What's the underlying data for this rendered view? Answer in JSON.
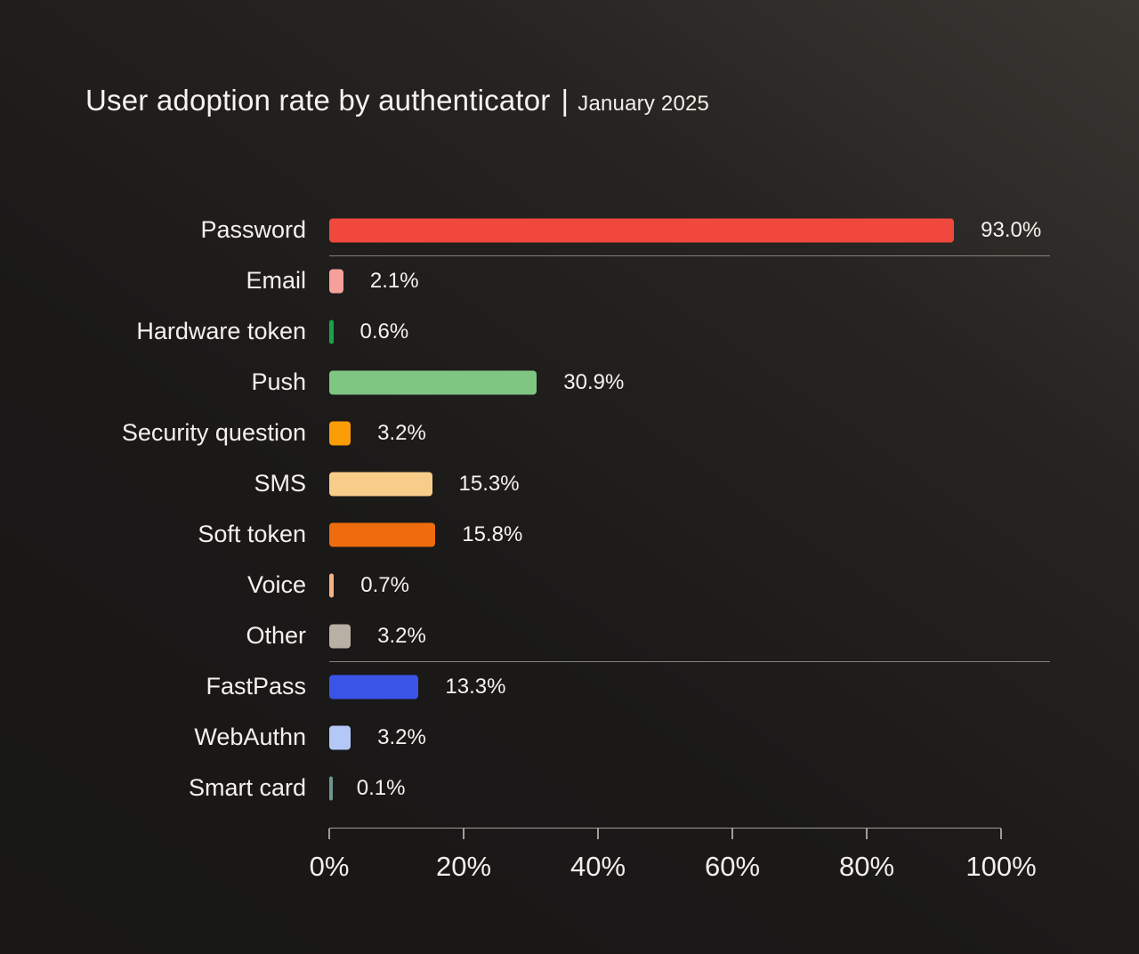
{
  "title": {
    "main": "User adoption rate by authenticator",
    "separator": "|",
    "subtitle": "January 2025"
  },
  "theme": {
    "background_top_right": "#3a3632",
    "background_bottom_left": "#181716",
    "text_color": "#f6f3ee",
    "separator_color": "#85817a",
    "axis_color": "#a29e97"
  },
  "chart_data": {
    "type": "bar",
    "orientation": "horizontal",
    "title": "User adoption rate by authenticator",
    "subtitle": "January 2025",
    "xlabel": "",
    "ylabel": "",
    "xlim": [
      0,
      100
    ],
    "grid": false,
    "legend": false,
    "categories": [
      "Password",
      "Email",
      "Hardware token",
      "Push",
      "Security question",
      "SMS",
      "Soft token",
      "Voice",
      "Other",
      "FastPass",
      "WebAuthn",
      "Smart card"
    ],
    "values": [
      93.0,
      2.1,
      0.6,
      30.9,
      3.2,
      15.3,
      15.8,
      0.7,
      3.2,
      13.3,
      3.2,
      0.1
    ],
    "value_labels": [
      "93.0%",
      "2.1%",
      "0.6%",
      "30.9%",
      "3.2%",
      "15.3%",
      "15.8%",
      "0.7%",
      "3.2%",
      "13.3%",
      "3.2%",
      "0.1%"
    ],
    "bar_colors": [
      "#f0483c",
      "#f5a09a",
      "#16a34a",
      "#7fc683",
      "#fb9d06",
      "#f8cd8a",
      "#ee6c0d",
      "#f7b183",
      "#b8b0a5",
      "#3b54e8",
      "#b4c8f8",
      "#6f958c"
    ],
    "group_separators_after": [
      0,
      8
    ],
    "x_axis": {
      "ticks": [
        0,
        20,
        40,
        60,
        80,
        100
      ],
      "tick_labels": [
        "0%",
        "20%",
        "40%",
        "60%",
        "80%",
        "100%"
      ]
    }
  }
}
